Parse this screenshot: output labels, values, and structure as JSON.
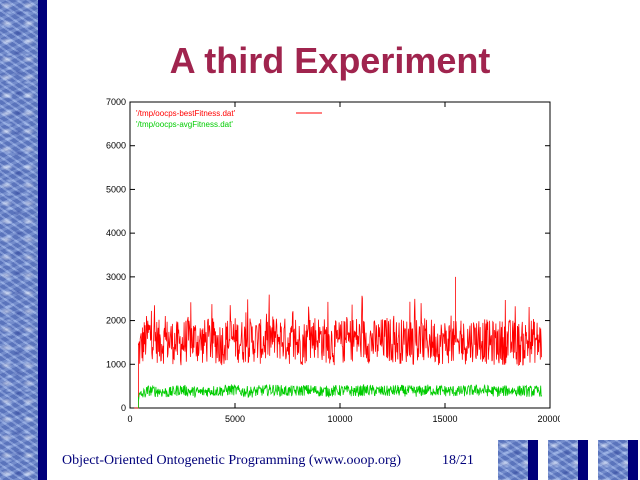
{
  "slide": {
    "title": "A third Experiment",
    "footer": "Object-Oriented Ontogenetic Programming (www.ooop.org)",
    "page": "18/21"
  },
  "colors": {
    "title": "#a0244e",
    "accent_stripe": "#00007a",
    "best_series": "#ff0000",
    "avg_series": "#00cc00"
  },
  "nav": {
    "buttons": [
      "water-tile-icon",
      "water-tile-icon",
      "water-tile-icon"
    ]
  },
  "chart_data": {
    "type": "line",
    "title": "",
    "xlabel": "",
    "ylabel": "",
    "xlim": [
      0,
      20000
    ],
    "ylim": [
      0,
      7000
    ],
    "x_ticks": [
      0,
      5000,
      10000,
      15000,
      20000
    ],
    "x_tick_labels": [
      "0",
      "5000",
      "10000",
      "15000",
      "20000"
    ],
    "y_ticks": [
      0,
      1000,
      2000,
      3000,
      4000,
      5000,
      6000,
      7000
    ],
    "y_tick_labels": [
      "0",
      "1000",
      "2000",
      "3000",
      "4000",
      "5000",
      "6000",
      "7000"
    ],
    "grid": false,
    "legend_position": "top-left",
    "x_start": 400,
    "x_end": 19600,
    "series": [
      {
        "name": "'/tmp/oocps-bestFitness.dat'",
        "values": [
          1300,
          1700,
          1500,
          1550,
          1450,
          1600,
          1500,
          1550,
          1480,
          1600,
          1520,
          1560,
          1500,
          1620,
          1580,
          1450,
          1500,
          1650,
          1550,
          1480,
          1520,
          1600,
          1550,
          1500,
          1580,
          1520,
          1540,
          1480,
          1560,
          1500,
          1520,
          1450,
          1550,
          1600,
          1480,
          1500,
          1520,
          1450,
          1550,
          1500
        ],
        "peak": 3000
      },
      {
        "name": "'/tmp/oocps-avgFitness.dat'",
        "values": [
          250,
          400,
          380,
          350,
          420,
          380,
          360,
          400,
          390,
          420,
          380,
          370,
          400,
          420,
          390,
          380,
          410,
          400,
          380,
          390,
          400,
          380,
          410,
          390,
          380,
          400,
          390,
          380,
          410,
          400,
          390,
          380,
          400,
          410,
          390,
          380,
          400,
          390,
          380,
          390
        ]
      }
    ]
  }
}
